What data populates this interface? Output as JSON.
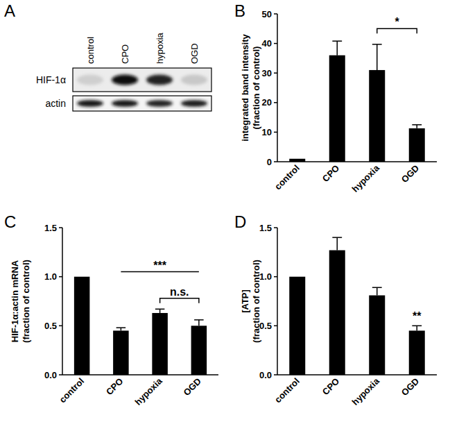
{
  "chart_data": [
    {
      "title": "A",
      "type": "blot",
      "categories": [
        "control",
        "CPO",
        "hypoxia",
        "OGD"
      ],
      "rows": [
        {
          "name": "HIF-1α",
          "values": [
            0.12,
            0.95,
            0.85,
            0.15
          ]
        },
        {
          "name": "actin",
          "values": [
            0.9,
            0.92,
            0.85,
            0.88
          ]
        }
      ]
    },
    {
      "title": "B",
      "type": "bar",
      "categories": [
        "control",
        "CPO",
        "hypoxia",
        "OGD"
      ],
      "values": [
        1,
        36,
        31,
        11.3
      ],
      "errors": [
        0,
        4.8,
        8.7,
        1.2
      ],
      "y_label": [
        "integrated band intensity",
        "(fraction of control)"
      ],
      "ylim": [
        0,
        50
      ],
      "yticks": [
        0,
        10,
        20,
        30,
        40,
        50
      ],
      "color": "#000000",
      "annotations": [
        {
          "text": "*",
          "from": 2,
          "to": 3,
          "y": 45,
          "line_style": "bracket"
        }
      ]
    },
    {
      "title": "C",
      "type": "bar",
      "categories": [
        "control",
        "CPO",
        "hypoxia",
        "OGD"
      ],
      "values": [
        1,
        0.45,
        0.63,
        0.5
      ],
      "errors": [
        0,
        0.03,
        0.04,
        0.06
      ],
      "y_label": [
        "HIF-1α:actin mRNA",
        "(fraction of control)"
      ],
      "ylim": [
        0,
        1.5
      ],
      "yticks": [
        {
          "value": 0,
          "label": "0.0"
        },
        {
          "value": 0.5,
          "label": "0.5"
        },
        {
          "value": 1,
          "label": "1.0"
        },
        {
          "value": 1.5,
          "label": "1.5"
        }
      ],
      "color": "#000000",
      "annotations": [
        {
          "text": "***",
          "from": 1,
          "to": 3,
          "y": 1.05,
          "line_style": "plain"
        },
        {
          "text": "n.s.",
          "from": 2,
          "to": 3,
          "y": 0.78,
          "line_style": "bracket"
        }
      ]
    },
    {
      "title": "D",
      "type": "bar",
      "categories": [
        "control",
        "CPO",
        "hypoxia",
        "OGD"
      ],
      "values": [
        1,
        1.27,
        0.81,
        0.45
      ],
      "errors": [
        0,
        0.13,
        0.08,
        0.05
      ],
      "y_label": [
        "[ATP]",
        "(fraction of control)"
      ],
      "ylim": [
        0,
        1.5
      ],
      "yticks": [
        {
          "value": 0,
          "label": "0.0"
        },
        {
          "value": 0.5,
          "label": "0.5"
        },
        {
          "value": 1,
          "label": "1.0"
        },
        {
          "value": 1.5,
          "label": "1.5"
        }
      ],
      "color": "#000000",
      "annotations": [
        {
          "text": "**",
          "from": 3,
          "to": 3,
          "y": 0.53,
          "line_style": "none"
        }
      ]
    }
  ]
}
